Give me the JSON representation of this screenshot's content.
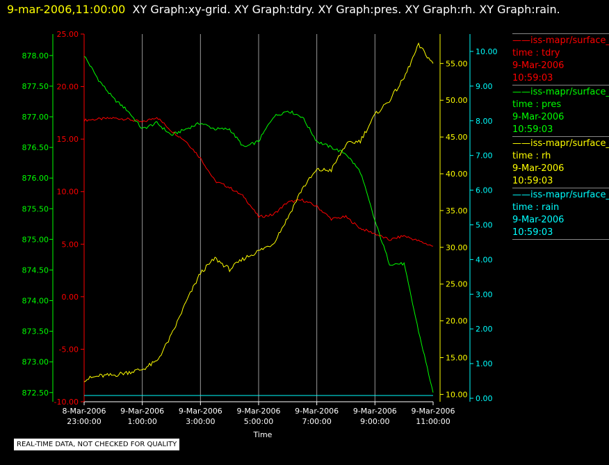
{
  "header": {
    "date": "9-mar-2006,11:00:00",
    "graphs": "XY Graph:xy-grid.  XY Graph:tdry.  XY Graph:pres.  XY Graph:rh.  XY Graph:rain."
  },
  "notice": "REAL-TIME DATA, NOT CHECKED FOR QUALITY",
  "legend": [
    {
      "line1": "iss-mapr/surface_",
      "line2": "time : tdry",
      "line3": "9-Mar-2006",
      "line4": "10:59:03",
      "color": "#ff0000"
    },
    {
      "line1": "iss-mapr/surface_",
      "line2": "time : pres",
      "line3": "9-Mar-2006",
      "line4": "10:59:03",
      "color": "#00ff00"
    },
    {
      "line1": "iss-mapr/surface_",
      "line2": "time : rh",
      "line3": "9-Mar-2006",
      "line4": "10:59:03",
      "color": "#ffff00"
    },
    {
      "line1": "iss-mapr/surface_",
      "line2": "time : rain",
      "line3": "9-Mar-2006",
      "line4": "10:59:03",
      "color": "#00ffff"
    }
  ],
  "chart_data": {
    "type": "line",
    "xlabel": "Time",
    "x_ticks": [
      {
        "line1": "8-Mar-2006",
        "line2": "23:00:00"
      },
      {
        "line1": "9-Mar-2006",
        "line2": "1:00:00"
      },
      {
        "line1": "9-Mar-2006",
        "line2": "3:00:00"
      },
      {
        "line1": "9-Mar-2006",
        "line2": "5:00:00"
      },
      {
        "line1": "9-Mar-2006",
        "line2": "7:00:00"
      },
      {
        "line1": "9-Mar-2006",
        "line2": "9:00:00"
      },
      {
        "line1": "9-Mar-2006",
        "line2": "11:00:00"
      }
    ],
    "grid": "vertical",
    "axes": {
      "pres": {
        "color": "#00ff00",
        "range": [
          872.35,
          878.35
        ],
        "ticks": [
          "872.50",
          "873.00",
          "873.50",
          "874.00",
          "874.50",
          "875.00",
          "875.50",
          "876.00",
          "876.50",
          "877.00",
          "877.50",
          "878.00"
        ]
      },
      "tdry": {
        "color": "#ff0000",
        "range": [
          -10.0,
          25.0
        ],
        "ticks": [
          "-10.00",
          "-5.00",
          "0.00",
          "5.00",
          "10.00",
          "15.00",
          "20.00",
          "25.00"
        ]
      },
      "rh": {
        "color": "#ffff00",
        "range": [
          9.0,
          59.0
        ],
        "ticks": [
          "10.00",
          "15.00",
          "20.00",
          "25.00",
          "30.00",
          "35.00",
          "40.00",
          "45.00",
          "50.00",
          "55.00"
        ]
      },
      "rain": {
        "color": "#00ffff",
        "range": [
          -0.1,
          10.5
        ],
        "ticks": [
          "0.00",
          "1.00",
          "2.00",
          "3.00",
          "4.00",
          "5.00",
          "6.00",
          "7.00",
          "8.00",
          "9.00",
          "10.00"
        ]
      }
    },
    "series": [
      {
        "name": "time : tdry",
        "axis": "tdry",
        "color": "#ff0000",
        "hours": [
          0,
          0.5,
          1,
          1.5,
          2,
          2.5,
          3,
          3.5,
          4,
          4.5,
          5,
          5.5,
          6,
          6.5,
          7,
          7.5,
          8,
          8.5,
          9,
          9.5,
          10,
          10.5,
          11,
          11.5,
          12
        ],
        "values": [
          16.8,
          16.9,
          17.0,
          16.9,
          16.6,
          17.1,
          15.8,
          14.8,
          13.2,
          11.0,
          10.4,
          9.5,
          7.6,
          7.8,
          9.0,
          9.2,
          8.6,
          7.4,
          7.6,
          6.5,
          6.0,
          5.4,
          5.8,
          5.3,
          4.8
        ]
      },
      {
        "name": "time : pres",
        "axis": "pres",
        "color": "#00ff00",
        "hours": [
          0,
          0.5,
          1,
          1.5,
          2,
          2.5,
          3,
          3.5,
          4,
          4.5,
          5,
          5.5,
          6,
          6.5,
          7,
          7.5,
          8,
          8.5,
          9,
          9.5,
          10,
          10.5,
          11,
          11.5,
          12
        ],
        "values": [
          878.0,
          877.6,
          877.3,
          877.1,
          876.8,
          876.9,
          876.7,
          876.8,
          876.9,
          876.8,
          876.8,
          876.5,
          876.6,
          877.0,
          877.1,
          877.0,
          876.6,
          876.5,
          876.4,
          876.1,
          875.3,
          874.6,
          874.6,
          873.5,
          872.5
        ]
      },
      {
        "name": "time : rh",
        "axis": "rh",
        "color": "#ffff00",
        "hours": [
          0,
          0.5,
          1,
          1.5,
          2,
          2.5,
          3,
          3.5,
          4,
          4.5,
          5,
          5.5,
          6,
          6.5,
          7,
          7.5,
          8,
          8.5,
          9,
          9.5,
          10,
          10.5,
          11,
          11.5,
          12
        ],
        "values": [
          12.0,
          12.5,
          12.6,
          13.0,
          13.4,
          14.5,
          18.0,
          22.5,
          26.5,
          28.5,
          27.0,
          28.5,
          29.5,
          30.5,
          34.0,
          38.0,
          40.5,
          40.5,
          44.0,
          44.5,
          48.0,
          50.0,
          53.0,
          57.5,
          55.0
        ]
      },
      {
        "name": "time : rain",
        "axis": "rain",
        "color": "#00ffff",
        "hours": [
          0,
          12
        ],
        "values": [
          0.0,
          0.0
        ]
      }
    ]
  }
}
